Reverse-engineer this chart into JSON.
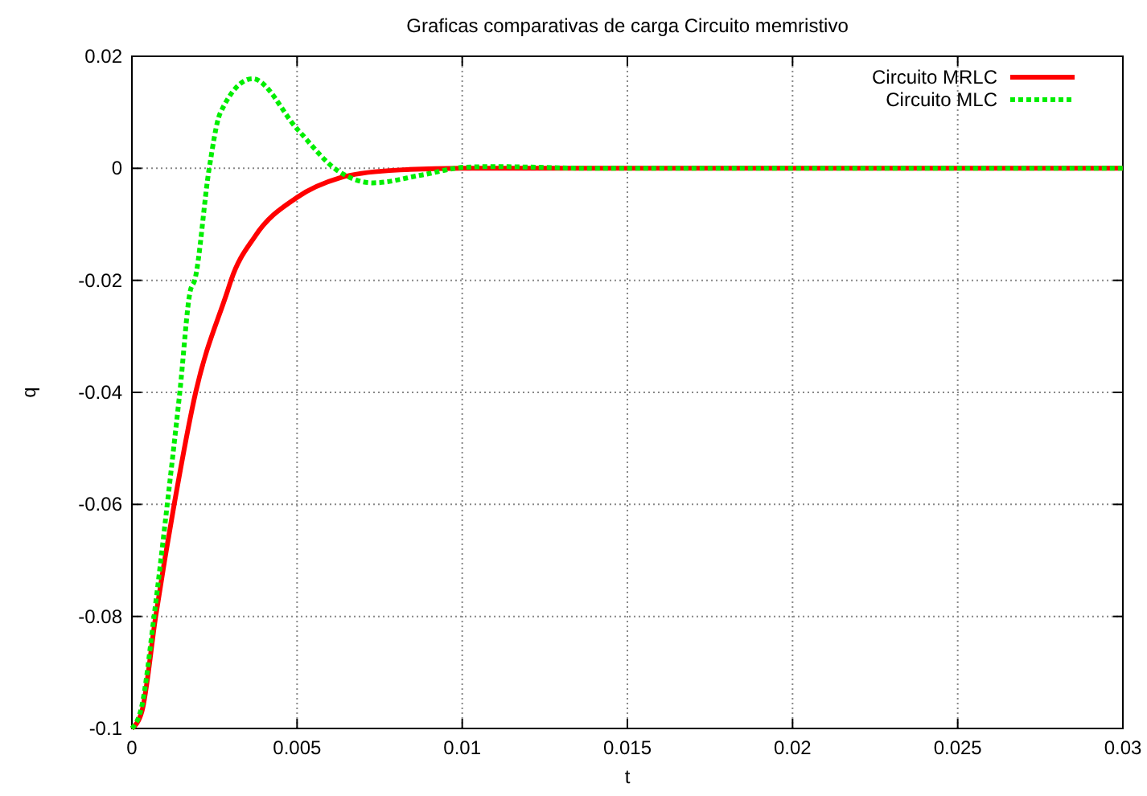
{
  "chart_data": {
    "type": "line",
    "title": "Graficas comparativas de carga Circuito memristivo",
    "xlabel": "t",
    "ylabel": "q",
    "xlim": [
      0,
      0.03
    ],
    "ylim": [
      -0.1,
      0.02
    ],
    "xticks": [
      0,
      0.005,
      0.01,
      0.015,
      0.02,
      0.025,
      0.03
    ],
    "yticks": [
      -0.1,
      -0.08,
      -0.06,
      -0.04,
      -0.02,
      0,
      0.02
    ],
    "grid": true,
    "legend": "top right",
    "series": [
      {
        "name": "Circuito MRLC",
        "color": "#ff0000",
        "line_style": "solid",
        "x": [
          0,
          0.0003,
          0.00072,
          0.00128,
          0.00193,
          0.0029,
          0.003,
          0.00372,
          0.005,
          0.0063,
          0.0078,
          0.01,
          0.015,
          0.02,
          0.025,
          0.03
        ],
        "values": [
          -0.1,
          -0.097,
          -0.08,
          -0.06,
          -0.04,
          -0.0218,
          -0.02,
          -0.0122,
          -0.0052,
          -0.0017,
          -0.0004,
          0,
          0,
          0,
          0,
          0
        ]
      },
      {
        "name": "Circuito MLC",
        "color": "#00ee00",
        "line_style": "dotted",
        "x": [
          0,
          0.0003,
          0.00067,
          0.00107,
          0.00145,
          0.00177,
          0.0019,
          0.00234,
          0.00267,
          0.00365,
          0.00502,
          0.0062,
          0.0073,
          0.00877,
          0.0101,
          0.011,
          0.014,
          0.02,
          0.025,
          0.03
        ],
        "values": [
          -0.1,
          -0.096,
          -0.08,
          -0.06,
          -0.04,
          -0.0218,
          -0.02,
          0,
          0.0098,
          0.016,
          0.0069,
          -0.0003,
          -0.0026,
          -0.0012,
          0.0002,
          0.0003,
          0,
          0,
          0,
          0
        ]
      }
    ]
  }
}
